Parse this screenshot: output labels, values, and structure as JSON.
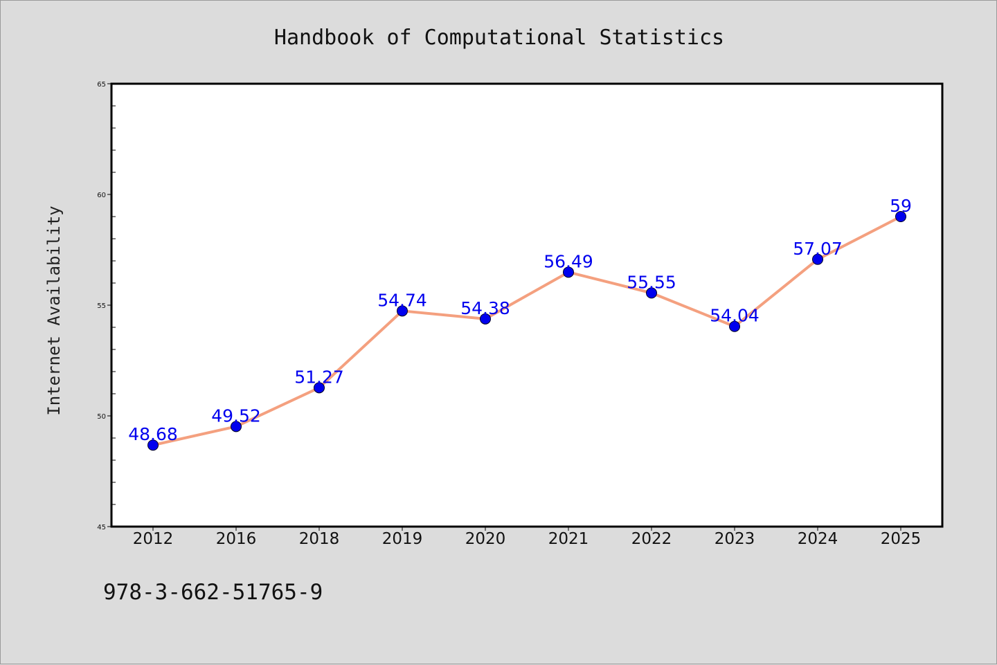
{
  "colors": {
    "background": "#dcdcdc",
    "plot_background": "#ffffff",
    "line": "#f4a07f",
    "marker": "#0000ee",
    "label": "#0000ee"
  },
  "footer": {
    "isbn": "978-3-662-51765-9"
  },
  "chart_data": {
    "type": "line",
    "title": "Handbook of Computational Statistics",
    "xlabel": "",
    "ylabel": "Internet Availability",
    "categories": [
      "2012",
      "2016",
      "2018",
      "2019",
      "2020",
      "2021",
      "2022",
      "2023",
      "2024",
      "2025"
    ],
    "series": [
      {
        "values": [
          48.68,
          49.52,
          51.27,
          54.74,
          54.38,
          56.49,
          55.55,
          54.04,
          57.07,
          59
        ],
        "labels": [
          "48.68",
          "49.52",
          "51.27",
          "54.74",
          "54.38",
          "56.49",
          "55.55",
          "54.04",
          "57.07",
          "59"
        ]
      }
    ],
    "ylim": [
      45,
      65
    ],
    "yticks": [
      45,
      50,
      55,
      60,
      65
    ],
    "ytick_labels": [
      "45",
      "50",
      "55",
      "60",
      "65"
    ],
    "y_minor_step": 1,
    "grid": false,
    "markers": "circle",
    "data_labels": true
  }
}
